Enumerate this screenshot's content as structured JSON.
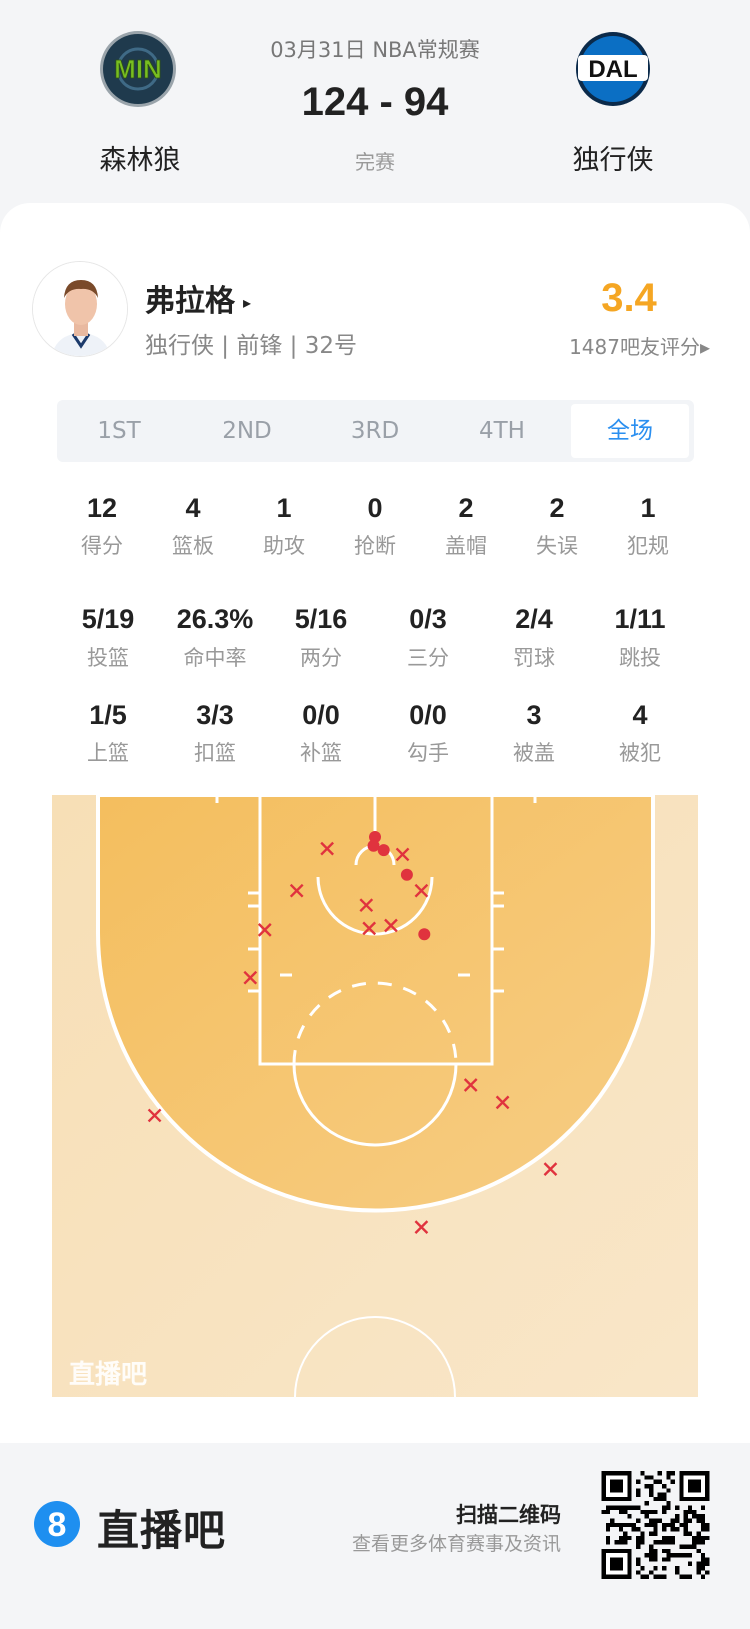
{
  "header": {
    "date_league": "03月31日 NBA常规赛",
    "score": "124 - 94",
    "status": "完赛",
    "home": {
      "name": "森林狼",
      "logo_text": "MIN",
      "color": "#78be20",
      "bg": "#1f3a4d"
    },
    "away": {
      "name": "独行侠",
      "logo_text": "DAL",
      "color": "#0b6fc4",
      "bg": "#ffffff"
    }
  },
  "player": {
    "name": "弗拉格",
    "arrow": "▸",
    "info": "独行侠 | 前锋 | 32号",
    "rating": "3.4",
    "rating_count": "1487吧友评分▸",
    "rating_color": "#f5a623"
  },
  "tabs": [
    {
      "label": "1ST",
      "active": false
    },
    {
      "label": "2ND",
      "active": false
    },
    {
      "label": "3RD",
      "active": false
    },
    {
      "label": "4TH",
      "active": false
    },
    {
      "label": "全场",
      "active": true
    }
  ],
  "stats": {
    "row1": [
      {
        "value": "12",
        "label": "得分"
      },
      {
        "value": "4",
        "label": "篮板"
      },
      {
        "value": "1",
        "label": "助攻"
      },
      {
        "value": "0",
        "label": "抢断"
      },
      {
        "value": "2",
        "label": "盖帽"
      },
      {
        "value": "2",
        "label": "失误"
      },
      {
        "value": "1",
        "label": "犯规"
      }
    ],
    "row2": [
      {
        "value": "5/19",
        "label": "投篮"
      },
      {
        "value": "26.3%",
        "label": "命中率"
      },
      {
        "value": "5/16",
        "label": "两分"
      },
      {
        "value": "0/3",
        "label": "三分"
      },
      {
        "value": "2/4",
        "label": "罚球"
      },
      {
        "value": "1/11",
        "label": "跳投"
      }
    ],
    "row3": [
      {
        "value": "1/5",
        "label": "上篮"
      },
      {
        "value": "3/3",
        "label": "扣篮"
      },
      {
        "value": "0/0",
        "label": "补篮"
      },
      {
        "value": "0/0",
        "label": "勾手"
      },
      {
        "value": "3",
        "label": "被盖"
      },
      {
        "value": "4",
        "label": "被犯"
      }
    ]
  },
  "chart_data": {
    "type": "scatter",
    "watermark": "直播吧",
    "units": "feet (x: left/right of basket, y: distance from baseline)",
    "made_color": "#e0333e",
    "missed_color": "#e0333e",
    "made": [
      [
        0,
        2.9
      ],
      [
        -0.1,
        3.5
      ],
      [
        0.6,
        3.8
      ],
      [
        2.2,
        5.5
      ],
      [
        3.4,
        9.6
      ]
    ],
    "missed": [
      [
        -3.3,
        3.7
      ],
      [
        1.9,
        4.1
      ],
      [
        -5.4,
        6.6
      ],
      [
        3.2,
        6.6
      ],
      [
        -0.6,
        7.6
      ],
      [
        -0.4,
        9.2
      ],
      [
        1.1,
        9.0
      ],
      [
        -7.6,
        9.3
      ],
      [
        -8.6,
        12.6
      ],
      [
        6.6,
        20.0
      ],
      [
        8.8,
        21.2
      ],
      [
        -15.2,
        22.1
      ],
      [
        12.1,
        25.8
      ],
      [
        3.2,
        29.8
      ]
    ]
  },
  "footer": {
    "brand_icon": "8",
    "brand": "直播吧",
    "qr_title": "扫描二维码",
    "qr_sub": "查看更多体育赛事及资讯"
  }
}
